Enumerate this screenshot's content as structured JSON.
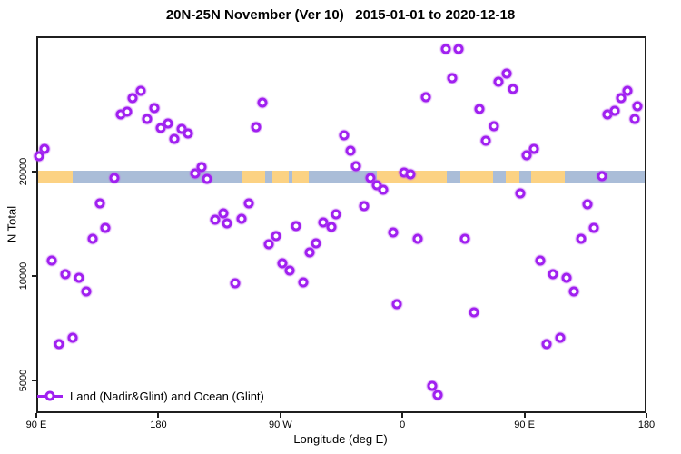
{
  "title": "20N-25N November (Ver 10)   2015-01-01 to 2020-12-18",
  "chart_data": {
    "type": "scatter",
    "title": "20N-25N November (Ver 10)   2015-01-01 to 2020-12-18",
    "xlabel": "Longitude (deg E)",
    "ylabel": "N Total",
    "x_axis": {
      "note": "longitude axis starts at 90E and wraps eastward 450 degrees",
      "range_deg": [
        90,
        540
      ],
      "ticks": [
        {
          "deg": 90,
          "label": "90 E"
        },
        {
          "deg": 180,
          "label": "180"
        },
        {
          "deg": 270,
          "label": "90 W"
        },
        {
          "deg": 360,
          "label": "0"
        },
        {
          "deg": 450,
          "label": "90 E"
        },
        {
          "deg": 540,
          "label": "180"
        }
      ]
    },
    "y_axis": {
      "scale": "log2",
      "ticks": [
        {
          "value": 20000,
          "label": "20000"
        },
        {
          "value": 10000,
          "label": "10000"
        },
        {
          "value": 5000,
          "label": "5000"
        }
      ],
      "approx_range": [
        4400,
        49000
      ]
    },
    "legend": {
      "label": "Land (Nadir&Glint) and Ocean (Glint)",
      "position": "bottom-left",
      "marker": "open-circle-on-line"
    },
    "colors": {
      "marker": "#a020f0",
      "ocean": "#aabdd8",
      "land": "#fcd283",
      "axis": "#1f1f1f"
    },
    "map_strip": {
      "description": "world map band for 20N-25N drawn along the 20000 gridline",
      "n_top": 20150,
      "n_bottom": 18650,
      "land_segments_deg": [
        [
          90,
          117
        ],
        [
          242,
          259
        ],
        [
          264,
          276
        ],
        [
          279,
          291
        ],
        [
          341,
          393
        ],
        [
          403,
          427
        ],
        [
          436,
          446
        ],
        [
          455,
          480
        ]
      ]
    },
    "series": [
      {
        "name": "Land (Nadir&Glint) and Ocean (Glint)",
        "marker": "open-circle",
        "points_deg_n": [
          [
            152.3,
            29200
          ],
          [
            157.0,
            29800
          ],
          [
            161.0,
            32600
          ],
          [
            167.0,
            34100
          ],
          [
            171.7,
            28300
          ],
          [
            177.1,
            30500
          ],
          [
            181.7,
            26700
          ],
          [
            187.1,
            27600
          ],
          [
            191.8,
            24900
          ],
          [
            197.1,
            26600
          ],
          [
            201.8,
            25700
          ],
          [
            96.0,
            23200
          ],
          [
            92.0,
            22100
          ],
          [
            207.2,
            19760
          ],
          [
            211.9,
            20610
          ],
          [
            147.6,
            19170
          ],
          [
            215.9,
            19050
          ],
          [
            256.8,
            31600
          ],
          [
            252.1,
            26900
          ],
          [
            317.0,
            25400
          ],
          [
            321.7,
            23000
          ],
          [
            325.7,
            20740
          ],
          [
            377.3,
            32800
          ],
          [
            361.2,
            19880
          ],
          [
            365.9,
            19640
          ],
          [
            392.0,
            45200
          ],
          [
            401.4,
            45200
          ],
          [
            396.7,
            37100
          ],
          [
            436.9,
            38400
          ],
          [
            430.9,
            36400
          ],
          [
            441.6,
            34700
          ],
          [
            416.8,
            30300
          ],
          [
            427.5,
            27100
          ],
          [
            421.5,
            24600
          ],
          [
            457.0,
            23200
          ],
          [
            451.6,
            22300
          ],
          [
            525.9,
            34300
          ],
          [
            521.2,
            32600
          ],
          [
            533.3,
            30800
          ],
          [
            511.2,
            29200
          ],
          [
            516.5,
            30000
          ],
          [
            531.3,
            28400
          ],
          [
            507.2,
            19400
          ],
          [
            136.9,
            16200
          ],
          [
            140.9,
            13800
          ],
          [
            131.5,
            12800
          ],
          [
            101.4,
            11100
          ],
          [
            111.4,
            10130
          ],
          [
            121.5,
            9890
          ],
          [
            126.8,
            9050
          ],
          [
            116.8,
            6640
          ],
          [
            106.7,
            6370
          ],
          [
            221.9,
            14500
          ],
          [
            230.6,
            14150
          ],
          [
            227.9,
            15200
          ],
          [
            241.3,
            14580
          ],
          [
            246.7,
            16200
          ],
          [
            236.7,
            9520
          ],
          [
            281.5,
            13900
          ],
          [
            266.8,
            13000
          ],
          [
            261.4,
            12320
          ],
          [
            301.6,
            14230
          ],
          [
            307.7,
            13820
          ],
          [
            311.0,
            15090
          ],
          [
            296.3,
            12390
          ],
          [
            291.6,
            11730
          ],
          [
            271.5,
            10900
          ],
          [
            276.8,
            10340
          ],
          [
            286.9,
            9580
          ],
          [
            331.8,
            15860
          ],
          [
            336.4,
            19170
          ],
          [
            341.1,
            18270
          ],
          [
            345.8,
            17740
          ],
          [
            353.2,
            13340
          ],
          [
            371.3,
            12790
          ],
          [
            355.9,
            8290
          ],
          [
            382.0,
            4830
          ],
          [
            386.0,
            4530
          ],
          [
            447.0,
            17300
          ],
          [
            496.5,
            16100
          ],
          [
            501.2,
            13800
          ],
          [
            491.8,
            12790
          ],
          [
            406.1,
            12790
          ],
          [
            461.6,
            11100
          ],
          [
            471.0,
            10130
          ],
          [
            481.0,
            9890
          ],
          [
            486.4,
            9050
          ],
          [
            412.8,
            7860
          ],
          [
            476.4,
            6640
          ],
          [
            466.4,
            6370
          ]
        ]
      }
    ]
  }
}
